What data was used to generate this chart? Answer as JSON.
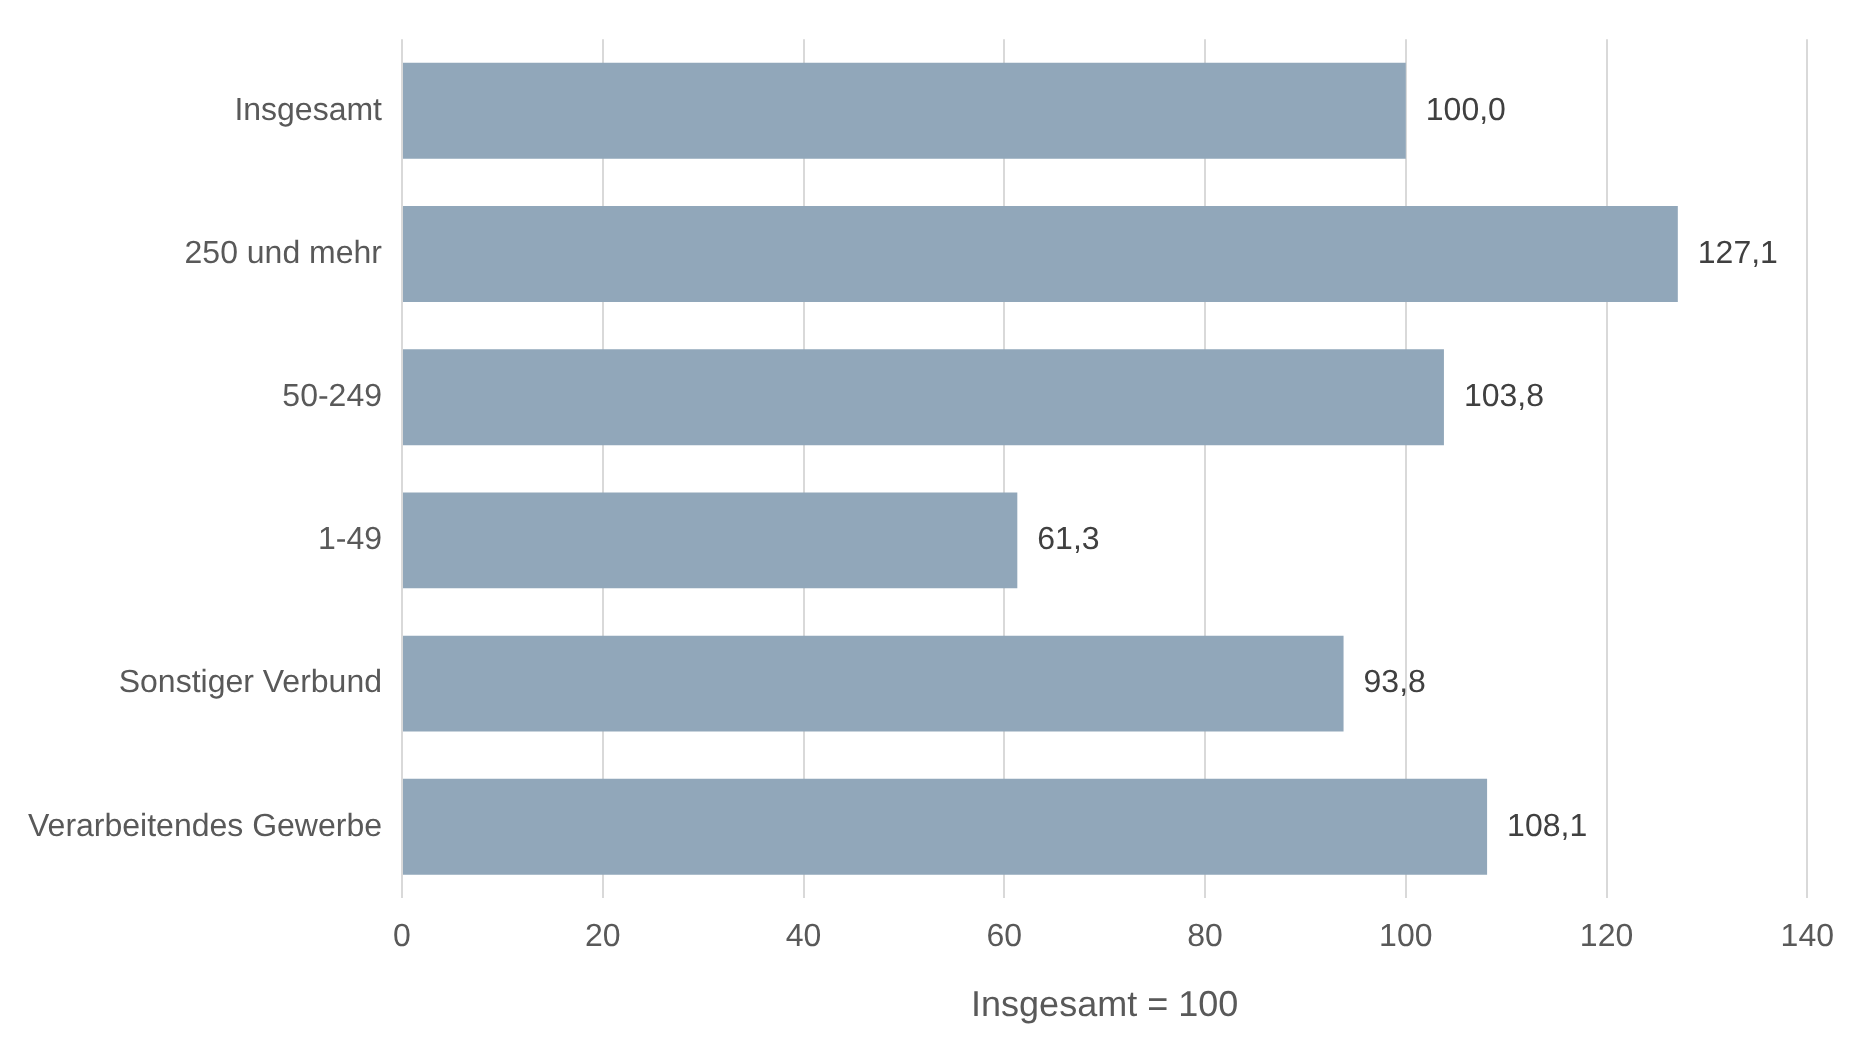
{
  "chart_data": {
    "type": "bar",
    "orientation": "horizontal",
    "xlabel": "Insgesamt = 100",
    "categories": [
      "Insgesamt",
      "250 und mehr",
      "50-249",
      "1-49",
      "Sonstiger Verbund",
      "Verarbeitendes Gewerbe"
    ],
    "values": [
      100.0,
      127.1,
      103.8,
      61.3,
      93.8,
      108.1
    ],
    "value_labels": [
      "100,0",
      "127,1",
      "103,8",
      "61,3",
      "93,8",
      "108,1"
    ],
    "color": "#91a7ba",
    "xlim": [
      0,
      140
    ],
    "xticks": [
      0,
      20,
      40,
      60,
      80,
      100,
      120,
      140
    ],
    "grid": "x",
    "legend": false
  }
}
